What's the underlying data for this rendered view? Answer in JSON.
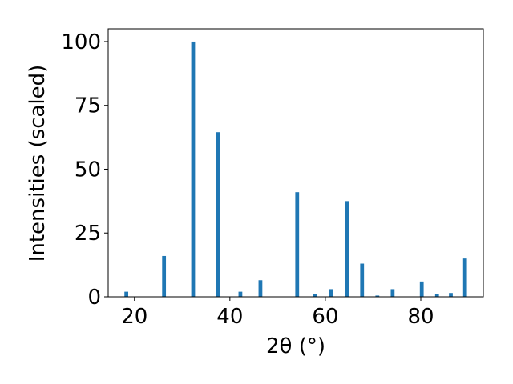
{
  "chart_data": {
    "type": "bar",
    "xlabel": "2θ (°)",
    "ylabel": "Intensities (scaled)",
    "x": [
      18.3,
      26.2,
      32.3,
      37.5,
      42.2,
      46.4,
      54.1,
      57.8,
      61.2,
      64.5,
      67.7,
      70.9,
      74.1,
      80.2,
      83.4,
      86.3,
      89.1
    ],
    "values": [
      2,
      16,
      100,
      64.5,
      2,
      6.5,
      41,
      1,
      3,
      37.5,
      13,
      0.5,
      3,
      6,
      1,
      1.5,
      15
    ],
    "color": "#1f77b4",
    "xlim": [
      14.5,
      93.1
    ],
    "xticks": [
      20,
      40,
      60,
      80
    ],
    "ylim": [
      0,
      105
    ],
    "yticks": [
      0,
      25,
      50,
      75,
      100
    ]
  }
}
